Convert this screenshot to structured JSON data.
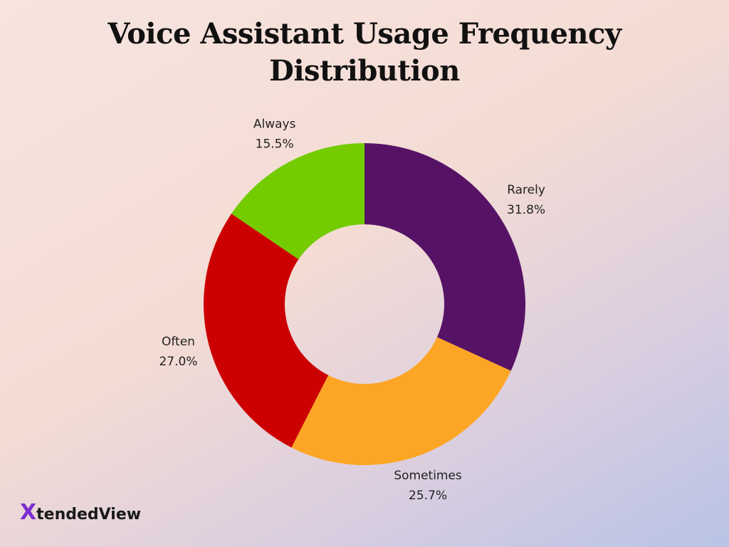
{
  "chart_data": {
    "type": "donut",
    "title": "Voice Assistant Usage Frequency Distribution",
    "categories": [
      "Rarely",
      "Sometimes",
      "Often",
      "Always"
    ],
    "values": [
      31.8,
      25.7,
      27.0,
      15.5
    ],
    "value_labels": [
      "31.8%",
      "25.7%",
      "27.0%",
      "15.5%"
    ],
    "colors": [
      "#561366",
      "#fda626",
      "#cc0000",
      "#74cc00"
    ]
  },
  "logo": {
    "mark": "X",
    "text": "tended",
    "brand": "View"
  }
}
